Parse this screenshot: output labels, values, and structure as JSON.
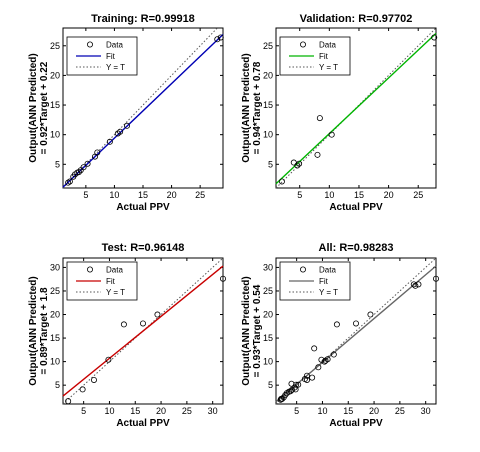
{
  "chart_data": [
    {
      "type": "scatter",
      "title": "Training: R=0.99918",
      "xlabel": "Actual PPV",
      "ylabel": [
        "Output(ANN Predicted)",
        "= 0.92*Target + 0.22"
      ],
      "xlim": [
        1,
        29
      ],
      "ylim": [
        1,
        28
      ],
      "xticks": [
        5,
        10,
        15,
        20,
        25
      ],
      "yticks": [
        5,
        10,
        15,
        20,
        25
      ],
      "fit": {
        "slope": 0.92,
        "intercept": 0.22,
        "color": "#0000b4"
      },
      "legend": [
        "Data",
        "Fit",
        "Y = T"
      ],
      "x": [
        1.9,
        2.2,
        2.8,
        3.1,
        3.5,
        3.8,
        4.1,
        4.6,
        5.3,
        6.6,
        7.0,
        9.2,
        10.6,
        11.0,
        12.2,
        28.0,
        28.6
      ],
      "y": [
        1.9,
        2.1,
        2.9,
        3.3,
        3.6,
        3.7,
        4.0,
        4.5,
        5.1,
        6.3,
        7.0,
        8.8,
        10.2,
        10.5,
        11.5,
        26.1,
        26.4
      ]
    },
    {
      "type": "scatter",
      "title": "Validation: R=0.97702",
      "xlabel": "Actual PPV",
      "ylabel": [
        "Output(ANN Predicted)",
        "= 0.94*Target + 0.78"
      ],
      "xlim": [
        1,
        28
      ],
      "ylim": [
        1,
        28
      ],
      "xticks": [
        5,
        10,
        15,
        20,
        25
      ],
      "yticks": [
        5,
        10,
        15,
        20,
        25
      ],
      "fit": {
        "slope": 0.94,
        "intercept": 0.78,
        "color": "#00b400"
      },
      "legend": [
        "Data",
        "Fit",
        "Y = T"
      ],
      "x": [
        2.0,
        4.0,
        4.6,
        4.9,
        8.0,
        8.4,
        10.4,
        27.7
      ],
      "y": [
        2.1,
        5.3,
        4.8,
        5.1,
        6.6,
        12.8,
        10.0,
        26.4
      ]
    },
    {
      "type": "scatter",
      "title": "Test: R=0.96148",
      "xlabel": "Actual PPV",
      "ylabel": [
        "Output(ANN Predicted)",
        "= 0.89*Target + 1.8"
      ],
      "xlim": [
        1,
        32
      ],
      "ylim": [
        1,
        32
      ],
      "xticks": [
        5,
        10,
        15,
        20,
        25,
        30
      ],
      "yticks": [
        5,
        10,
        15,
        20,
        25,
        30
      ],
      "fit": {
        "slope": 0.89,
        "intercept": 1.8,
        "color": "#c80000"
      },
      "legend": [
        "Data",
        "Fit",
        "Y = T"
      ],
      "x": [
        2.0,
        4.8,
        7.0,
        9.8,
        12.8,
        16.5,
        19.3,
        32.0
      ],
      "y": [
        1.6,
        4.1,
        6.1,
        10.4,
        17.9,
        18.1,
        20.0,
        27.6
      ]
    },
    {
      "type": "scatter",
      "title": "All: R=0.98283",
      "xlabel": "Actual PPV",
      "ylabel": [
        "Output(ANN Predicted)",
        "= 0.93*Target + 0.54"
      ],
      "xlim": [
        1,
        32
      ],
      "ylim": [
        1,
        32
      ],
      "xticks": [
        5,
        10,
        15,
        20,
        25,
        30
      ],
      "yticks": [
        5,
        10,
        15,
        20,
        25,
        30
      ],
      "fit": {
        "slope": 0.93,
        "intercept": 0.54,
        "color": "#666666"
      },
      "legend": [
        "Data",
        "Fit",
        "Y = T"
      ],
      "x": [
        1.9,
        2.0,
        2.2,
        2.5,
        2.8,
        3.1,
        3.5,
        3.8,
        4.0,
        4.1,
        4.6,
        4.8,
        4.9,
        5.3,
        6.6,
        7.0,
        7.0,
        8.0,
        8.4,
        9.2,
        9.8,
        10.4,
        10.6,
        11.0,
        12.2,
        12.8,
        16.5,
        19.3,
        27.7,
        28.0,
        28.6,
        32.0
      ],
      "y": [
        1.9,
        2.1,
        2.1,
        2.4,
        2.9,
        3.3,
        3.6,
        3.7,
        5.3,
        4.0,
        4.5,
        4.1,
        5.1,
        5.1,
        6.3,
        7.0,
        6.1,
        6.6,
        12.8,
        8.8,
        10.4,
        10.0,
        10.2,
        10.5,
        11.5,
        17.9,
        18.1,
        20.0,
        26.4,
        26.1,
        26.4,
        27.6
      ]
    }
  ]
}
